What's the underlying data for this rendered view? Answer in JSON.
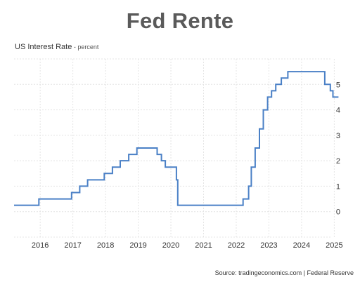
{
  "page": {
    "title": "Fed Rente",
    "subtitle": "US Interest Rate",
    "unit": " - percent",
    "source": "Source: tradingeconomics.com | Federal Reserve"
  },
  "chart_data": {
    "type": "line",
    "title": "Fed Rente",
    "xlabel": "",
    "ylabel": "US Interest Rate - percent",
    "x_tick_labels": [
      "2016",
      "2017",
      "2018",
      "2019",
      "2020",
      "2021",
      "2022",
      "2023",
      "2024",
      "2025"
    ],
    "y_tick_labels": [
      "0",
      "1",
      "2",
      "3",
      "4",
      "5"
    ],
    "xlim": [
      2015.2,
      2025.25
    ],
    "ylim": [
      -1,
      6
    ],
    "grid": true,
    "color": "#4a80c6",
    "series": [
      {
        "name": "",
        "step": true,
        "points": [
          [
            2015.2,
            0.25
          ],
          [
            2015.96,
            0.5
          ],
          [
            2016.96,
            0.75
          ],
          [
            2017.21,
            1.0
          ],
          [
            2017.45,
            1.25
          ],
          [
            2017.96,
            1.5
          ],
          [
            2018.21,
            1.75
          ],
          [
            2018.45,
            2.0
          ],
          [
            2018.71,
            2.25
          ],
          [
            2018.96,
            2.5
          ],
          [
            2019.58,
            2.25
          ],
          [
            2019.71,
            2.0
          ],
          [
            2019.83,
            1.75
          ],
          [
            2020.17,
            1.25
          ],
          [
            2020.21,
            0.25
          ],
          [
            2022.21,
            0.5
          ],
          [
            2022.38,
            1.0
          ],
          [
            2022.46,
            1.75
          ],
          [
            2022.58,
            2.5
          ],
          [
            2022.71,
            3.25
          ],
          [
            2022.83,
            4.0
          ],
          [
            2022.96,
            4.5
          ],
          [
            2023.08,
            4.75
          ],
          [
            2023.21,
            5.0
          ],
          [
            2023.38,
            5.25
          ],
          [
            2023.58,
            5.5
          ],
          [
            2024.71,
            5.0
          ],
          [
            2024.88,
            4.75
          ],
          [
            2024.96,
            4.5
          ],
          [
            2025.13,
            4.5
          ]
        ]
      }
    ]
  }
}
